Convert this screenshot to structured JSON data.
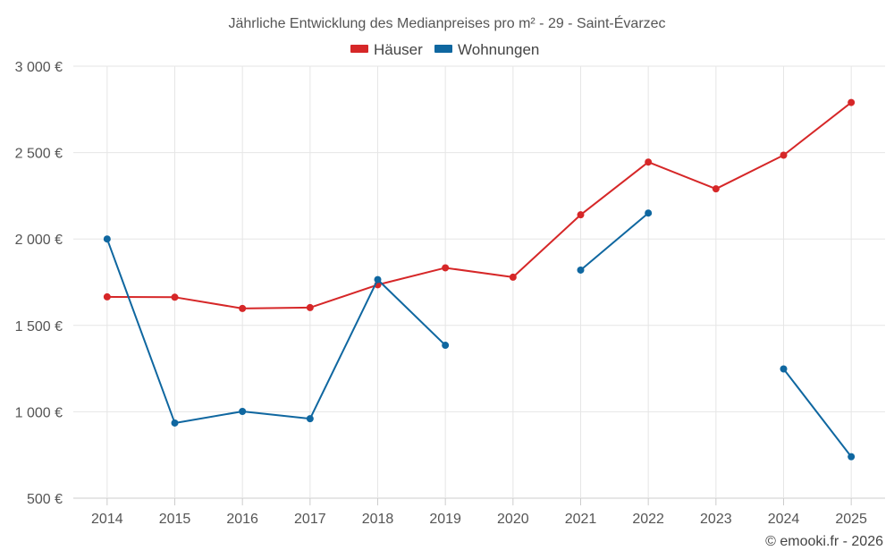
{
  "chart_data": {
    "type": "line",
    "title": "Jährliche Entwicklung des Medianpreises pro m² - 29 - Saint-Évarzec",
    "categories": [
      "2014",
      "2015",
      "2016",
      "2017",
      "2018",
      "2019",
      "2020",
      "2021",
      "2022",
      "2023",
      "2024",
      "2025"
    ],
    "ylim": [
      500,
      3000
    ],
    "yticks": [
      500,
      1000,
      1500,
      2000,
      2500,
      3000
    ],
    "ytick_labels": [
      "500 €",
      "1 000 €",
      "1 500 €",
      "2 000 €",
      "2 500 €",
      "3 000 €"
    ],
    "xlabel": "",
    "ylabel": "",
    "grid": true,
    "legend_position": "top-center",
    "series": [
      {
        "name": "Häuser",
        "color": "#d62728",
        "values": [
          1665,
          1663,
          1598,
          1603,
          1735,
          1833,
          1779,
          2140,
          2445,
          2290,
          2485,
          2790
        ]
      },
      {
        "name": "Wohnungen",
        "color": "#0f67a0",
        "values": [
          2000,
          935,
          1002,
          960,
          1765,
          1385,
          null,
          1820,
          2150,
          null,
          1248,
          740
        ]
      }
    ]
  },
  "credit": "© emooki.fr - 2026"
}
